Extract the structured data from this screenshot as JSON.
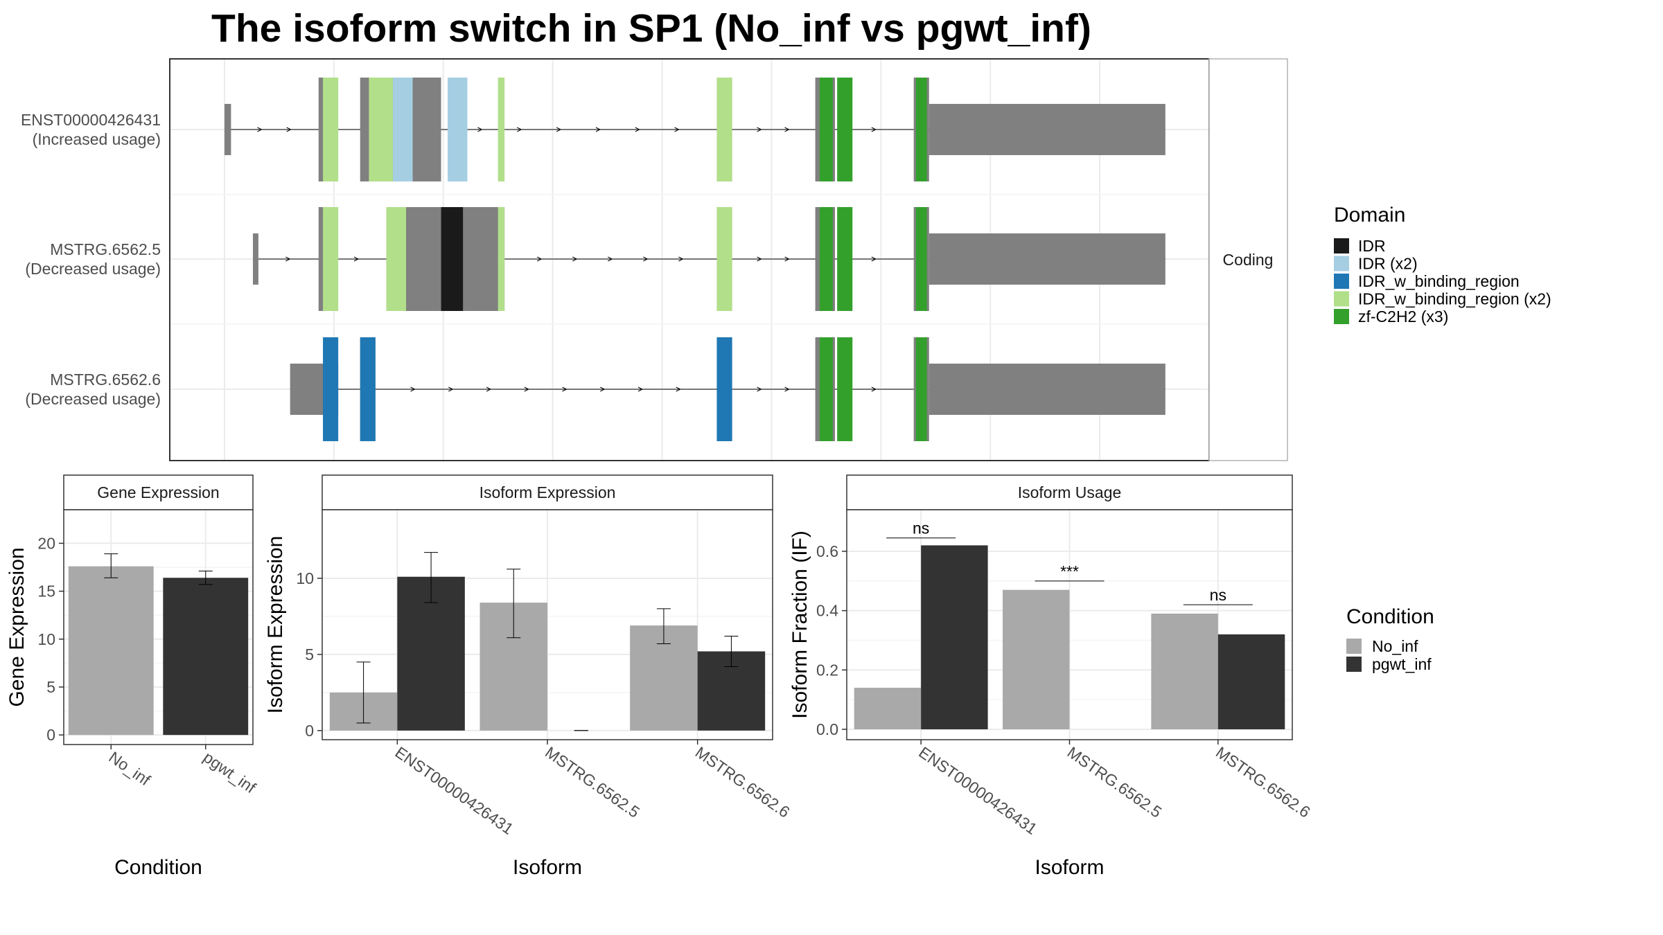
{
  "title": "The isoform switch in SP1 (No_inf vs pgwt_inf)",
  "colors": {
    "IDR": "#1a1a1a",
    "IDR (x2)": "#a6cee3",
    "IDR_w_binding_region": "#1f78b4",
    "IDR_w_binding_region (x2)": "#b2df8a",
    "zf-C2H2 (x3)": "#33a02c",
    "exon": "#808080",
    "No_inf": "#a9a9a9",
    "pgwt_inf": "#333333"
  },
  "chart_data": [
    {
      "type": "gene-structure",
      "name": "isoform-structure",
      "strip_label": "Coding",
      "legend": {
        "title": "Domain",
        "entries": [
          "IDR",
          "IDR (x2)",
          "IDR_w_binding_region",
          "IDR_w_binding_region (x2)",
          "zf-C2H2 (x3)"
        ]
      },
      "isoforms": [
        {
          "label": "ENST00000426431",
          "sublabel": "(Increased usage)",
          "exons": [
            [
              1000,
              1030,
              "nc"
            ],
            [
              1430,
              1470,
              "c"
            ],
            [
              1620,
              1990,
              "c"
            ],
            [
              3250,
              3320,
              "c"
            ],
            [
              3700,
              3790,
              "c"
            ],
            [
              4150,
              4220,
              "c"
            ],
            [
              4220,
              5300,
              "nc"
            ]
          ],
          "domains": [
            [
              1450,
              1520,
              "IDR_w_binding_region (x2)"
            ],
            [
              1660,
              1770,
              "IDR_w_binding_region (x2)"
            ],
            [
              1770,
              1860,
              "IDR (x2)"
            ],
            [
              2020,
              2110,
              "IDR (x2)"
            ],
            [
              2250,
              2280,
              "IDR_w_binding_region (x2)"
            ],
            [
              3250,
              3320,
              "IDR_w_binding_region (x2)"
            ],
            [
              3720,
              3780,
              "zf-C2H2 (x3)"
            ],
            [
              3800,
              3870,
              "zf-C2H2 (x3)"
            ],
            [
              4160,
              4210,
              "zf-C2H2 (x3)"
            ]
          ]
        },
        {
          "label": "MSTRG.6562.5",
          "sublabel": "(Decreased usage)",
          "exons": [
            [
              1130,
              1155,
              "nc"
            ],
            [
              1430,
              1470,
              "c"
            ],
            [
              1740,
              2280,
              "c"
            ],
            [
              3250,
              3320,
              "c"
            ],
            [
              3700,
              3790,
              "c"
            ],
            [
              4150,
              4220,
              "c"
            ],
            [
              4220,
              5300,
              "nc"
            ]
          ],
          "domains": [
            [
              1450,
              1520,
              "IDR_w_binding_region (x2)"
            ],
            [
              1740,
              1830,
              "IDR_w_binding_region (x2)"
            ],
            [
              1990,
              2090,
              "IDR"
            ],
            [
              2250,
              2280,
              "IDR_w_binding_region (x2)"
            ],
            [
              3250,
              3320,
              "IDR_w_binding_region (x2)"
            ],
            [
              3720,
              3780,
              "zf-C2H2 (x3)"
            ],
            [
              3800,
              3870,
              "zf-C2H2 (x3)"
            ],
            [
              4160,
              4210,
              "zf-C2H2 (x3)"
            ]
          ]
        },
        {
          "label": "MSTRG.6562.6",
          "sublabel": "(Decreased usage)",
          "exons": [
            [
              1300,
              1520,
              "nc"
            ],
            [
              1620,
              1690,
              "c"
            ],
            [
              3250,
              3320,
              "c"
            ],
            [
              3700,
              3790,
              "c"
            ],
            [
              4150,
              4220,
              "c"
            ],
            [
              4220,
              5300,
              "nc"
            ]
          ],
          "domains": [
            [
              1450,
              1520,
              "IDR_w_binding_region"
            ],
            [
              1620,
              1690,
              "IDR_w_binding_region"
            ],
            [
              3250,
              3320,
              "IDR_w_binding_region"
            ],
            [
              3720,
              3780,
              "zf-C2H2 (x3)"
            ],
            [
              3800,
              3870,
              "zf-C2H2 (x3)"
            ],
            [
              4160,
              4210,
              "zf-C2H2 (x3)"
            ]
          ]
        }
      ]
    },
    {
      "type": "bar",
      "name": "gene-expression",
      "title": "Gene Expression",
      "xlabel": "Condition",
      "ylabel": "Gene Expression",
      "categories": [
        "No_inf",
        "pgwt_inf"
      ],
      "values": [
        17.6,
        16.4
      ],
      "errors": [
        [
          16.4,
          18.9
        ],
        [
          15.7,
          17.1
        ]
      ],
      "yticks": [
        0,
        5,
        10,
        15,
        20
      ],
      "ylim": [
        -1,
        23.5
      ]
    },
    {
      "type": "bar",
      "name": "isoform-expression",
      "title": "Isoform Expression",
      "xlabel": "Isoform",
      "ylabel": "Isoform Expression",
      "categories": [
        "ENST00000426431",
        "MSTRG.6562.5",
        "MSTRG.6562.6"
      ],
      "series": [
        {
          "name": "No_inf",
          "values": [
            2.5,
            8.4,
            6.9
          ],
          "errors": [
            [
              0.5,
              4.5
            ],
            [
              6.1,
              10.6
            ],
            [
              5.7,
              8.0
            ]
          ]
        },
        {
          "name": "pgwt_inf",
          "values": [
            10.1,
            0.0,
            5.2
          ],
          "errors": [
            [
              8.4,
              11.7
            ],
            [
              0.0,
              0.0
            ],
            [
              4.2,
              6.2
            ]
          ]
        }
      ],
      "yticks": [
        0,
        5,
        10
      ],
      "ylim": [
        -0.6,
        14.5
      ]
    },
    {
      "type": "bar",
      "name": "isoform-usage",
      "title": "Isoform Usage",
      "xlabel": "Isoform",
      "ylabel": "Isoform Fraction (IF)",
      "categories": [
        "ENST00000426431",
        "MSTRG.6562.5",
        "MSTRG.6562.6"
      ],
      "series": [
        {
          "name": "No_inf",
          "values": [
            0.14,
            0.47,
            0.39
          ]
        },
        {
          "name": "pgwt_inf",
          "values": [
            0.62,
            0.0,
            0.32
          ]
        }
      ],
      "significance": [
        {
          "label": "ns",
          "y": 0.645
        },
        {
          "label": "***",
          "y": 0.5
        },
        {
          "label": "ns",
          "y": 0.42
        }
      ],
      "yticks": [
        0.0,
        0.2,
        0.4,
        0.6
      ],
      "yticklabels": [
        "0.0",
        "0.2",
        "0.4",
        "0.6"
      ],
      "ylim": [
        -0.035,
        0.74
      ]
    }
  ],
  "condition_legend": {
    "title": "Condition",
    "entries": [
      "No_inf",
      "pgwt_inf"
    ]
  }
}
